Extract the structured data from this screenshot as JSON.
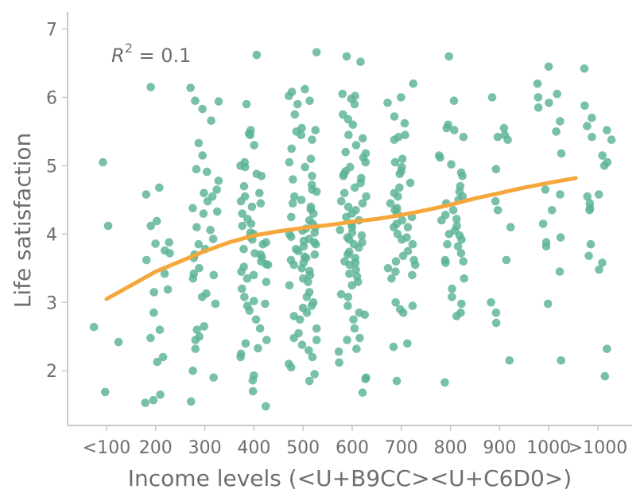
{
  "chart_data": {
    "type": "scatter",
    "xlabel": "Income levels (<U+B9CC><U+C6D0>)",
    "ylabel": "Life satisfaction",
    "annotation": {
      "prefix": "R",
      "sup": "2",
      "suffix": " = 0.1"
    },
    "categories": [
      "<100",
      "200",
      "300",
      "400",
      "500",
      "600",
      "700",
      "800",
      "900",
      "1000",
      ">1000"
    ],
    "ylim": [
      1.2,
      7.25
    ],
    "yticks": [
      2,
      3,
      4,
      5,
      6,
      7
    ],
    "grid": false,
    "colors": {
      "points": "#5ab394",
      "trend": "#f5a73b",
      "axis": "#c8c8c8",
      "text": "#6e6e6e"
    },
    "trend": [
      [
        0,
        3.05
      ],
      [
        0.5,
        3.25
      ],
      [
        1,
        3.45
      ],
      [
        1.5,
        3.6
      ],
      [
        2,
        3.75
      ],
      [
        2.5,
        3.88
      ],
      [
        3,
        3.98
      ],
      [
        3.5,
        4.04
      ],
      [
        4,
        4.09
      ],
      [
        4.5,
        4.13
      ],
      [
        5,
        4.18
      ],
      [
        5.5,
        4.22
      ],
      [
        6,
        4.28
      ],
      [
        6.5,
        4.35
      ],
      [
        7,
        4.43
      ],
      [
        7.5,
        4.52
      ],
      [
        8,
        4.6
      ],
      [
        8.5,
        4.68
      ],
      [
        9,
        4.75
      ],
      [
        9.55,
        4.82
      ]
    ],
    "points": [
      [
        0,
        2.42
      ],
      [
        0,
        2.64
      ],
      [
        0,
        4.12
      ],
      [
        0,
        5.05
      ],
      [
        0,
        1.69
      ],
      [
        1,
        4.68
      ],
      [
        1,
        4.58
      ],
      [
        1,
        4.12
      ],
      [
        1,
        4.19
      ],
      [
        1,
        3.88
      ],
      [
        1,
        3.76
      ],
      [
        1,
        3.62
      ],
      [
        1,
        3.72
      ],
      [
        1,
        3.42
      ],
      [
        1,
        3.15
      ],
      [
        1,
        3.19
      ],
      [
        1,
        2.85
      ],
      [
        1,
        2.6
      ],
      [
        1,
        2.48
      ],
      [
        1,
        2.2
      ],
      [
        1,
        2.13
      ],
      [
        1,
        1.65
      ],
      [
        1,
        1.57
      ],
      [
        1,
        1.53
      ],
      [
        1,
        6.15
      ],
      [
        1,
        3.86
      ],
      [
        2,
        6.14
      ],
      [
        2,
        5.95
      ],
      [
        2,
        5.83
      ],
      [
        2,
        5.94
      ],
      [
        2,
        5.66
      ],
      [
        2,
        5.33
      ],
      [
        2,
        5.15
      ],
      [
        2,
        4.95
      ],
      [
        2,
        4.91
      ],
      [
        2,
        4.78
      ],
      [
        2,
        4.65
      ],
      [
        2,
        4.6
      ],
      [
        2,
        4.55
      ],
      [
        2,
        4.48
      ],
      [
        2,
        4.33
      ],
      [
        2,
        4.3
      ],
      [
        2,
        4.1
      ],
      [
        2,
        4.06
      ],
      [
        2,
        3.93
      ],
      [
        2,
        3.85
      ],
      [
        2,
        3.78
      ],
      [
        2,
        3.7
      ],
      [
        2,
        3.65
      ],
      [
        2,
        3.5
      ],
      [
        2,
        3.42
      ],
      [
        2,
        3.4
      ],
      [
        2,
        3.13
      ],
      [
        2,
        3.08
      ],
      [
        2,
        2.98
      ],
      [
        2,
        2.65
      ],
      [
        2,
        2.6
      ],
      [
        2,
        2.5
      ],
      [
        2,
        2.45
      ],
      [
        2,
        2.32
      ],
      [
        2,
        2.0
      ],
      [
        2,
        1.9
      ],
      [
        2,
        1.55
      ],
      [
        2,
        3.35
      ],
      [
        2,
        4.38
      ],
      [
        3,
        6.62
      ],
      [
        3,
        5.9
      ],
      [
        3,
        5.52
      ],
      [
        3,
        5.47
      ],
      [
        3,
        5.45
      ],
      [
        3,
        5.3
      ],
      [
        3,
        5.05
      ],
      [
        3,
        5.0
      ],
      [
        3,
        4.98
      ],
      [
        3,
        4.88
      ],
      [
        3,
        4.7
      ],
      [
        3,
        4.6
      ],
      [
        3,
        4.55
      ],
      [
        3,
        4.48
      ],
      [
        3,
        4.45
      ],
      [
        3,
        4.4
      ],
      [
        3,
        4.3
      ],
      [
        3,
        4.22
      ],
      [
        3,
        4.12
      ],
      [
        3,
        4.02
      ],
      [
        3,
        4.0
      ],
      [
        3,
        3.96
      ],
      [
        3,
        3.92
      ],
      [
        3,
        3.88
      ],
      [
        3,
        3.85
      ],
      [
        3,
        3.78
      ],
      [
        3,
        3.72
      ],
      [
        3,
        3.7
      ],
      [
        3,
        3.66
      ],
      [
        3,
        3.6
      ],
      [
        3,
        3.56
      ],
      [
        3,
        3.52
      ],
      [
        3,
        3.45
      ],
      [
        3,
        3.4
      ],
      [
        3,
        3.35
      ],
      [
        3,
        3.3
      ],
      [
        3,
        3.2
      ],
      [
        3,
        3.08
      ],
      [
        3,
        3.02
      ],
      [
        3,
        2.98
      ],
      [
        3,
        2.88
      ],
      [
        3,
        2.75
      ],
      [
        3,
        2.62
      ],
      [
        3,
        2.45
      ],
      [
        3,
        2.4
      ],
      [
        3,
        2.33
      ],
      [
        3,
        2.25
      ],
      [
        3,
        2.2
      ],
      [
        3,
        1.93
      ],
      [
        3,
        1.86
      ],
      [
        3,
        1.7
      ],
      [
        3,
        1.48
      ],
      [
        3,
        4.15
      ],
      [
        3,
        3.55
      ],
      [
        3,
        2.95
      ],
      [
        3,
        4.85
      ],
      [
        4,
        6.66
      ],
      [
        4,
        6.08
      ],
      [
        4,
        6.02
      ],
      [
        4,
        5.95
      ],
      [
        4,
        5.9
      ],
      [
        4,
        5.75
      ],
      [
        4,
        5.52
      ],
      [
        4,
        5.5
      ],
      [
        4,
        5.45
      ],
      [
        4,
        5.38
      ],
      [
        4,
        5.1
      ],
      [
        4,
        5.05
      ],
      [
        4,
        4.98
      ],
      [
        4,
        4.85
      ],
      [
        4,
        4.8
      ],
      [
        4,
        4.72
      ],
      [
        4,
        4.65
      ],
      [
        4,
        4.55
      ],
      [
        4,
        4.5
      ],
      [
        4,
        4.4
      ],
      [
        4,
        4.36
      ],
      [
        4,
        4.3
      ],
      [
        4,
        4.25
      ],
      [
        4,
        4.2
      ],
      [
        4,
        4.15
      ],
      [
        4,
        4.1
      ],
      [
        4,
        4.08
      ],
      [
        4,
        4.05
      ],
      [
        4,
        4.02
      ],
      [
        4,
        4.0
      ],
      [
        4,
        3.96
      ],
      [
        4,
        3.93
      ],
      [
        4,
        3.9
      ],
      [
        4,
        3.88
      ],
      [
        4,
        3.85
      ],
      [
        4,
        3.82
      ],
      [
        4,
        3.78
      ],
      [
        4,
        3.75
      ],
      [
        4,
        3.7
      ],
      [
        4,
        3.67
      ],
      [
        4,
        3.62
      ],
      [
        4,
        3.58
      ],
      [
        4,
        3.55
      ],
      [
        4,
        3.5
      ],
      [
        4,
        3.46
      ],
      [
        4,
        3.4
      ],
      [
        4,
        3.35
      ],
      [
        4,
        3.3
      ],
      [
        4,
        3.25
      ],
      [
        4,
        3.15
      ],
      [
        4,
        3.0
      ],
      [
        4,
        2.95
      ],
      [
        4,
        2.92
      ],
      [
        4,
        2.85
      ],
      [
        4,
        2.8
      ],
      [
        4,
        2.75
      ],
      [
        4,
        2.62
      ],
      [
        4,
        2.55
      ],
      [
        4,
        2.45
      ],
      [
        4,
        2.38
      ],
      [
        4,
        2.3
      ],
      [
        4,
        2.2
      ],
      [
        4,
        2.1
      ],
      [
        4,
        2.05
      ],
      [
        4,
        1.95
      ],
      [
        4,
        1.85
      ],
      [
        4,
        5.55
      ],
      [
        4,
        4.45
      ],
      [
        4,
        3.65
      ],
      [
        4,
        2.48
      ],
      [
        4,
        6.12
      ],
      [
        4,
        5.25
      ],
      [
        4,
        4.62
      ],
      [
        4,
        3.08
      ],
      [
        5,
        6.6
      ],
      [
        5,
        6.52
      ],
      [
        5,
        6.05
      ],
      [
        5,
        5.98
      ],
      [
        5,
        5.9
      ],
      [
        5,
        5.75
      ],
      [
        5,
        5.6
      ],
      [
        5,
        5.45
      ],
      [
        5,
        5.4
      ],
      [
        5,
        5.3
      ],
      [
        5,
        5.2
      ],
      [
        5,
        5.12
      ],
      [
        5,
        5.05
      ],
      [
        5,
        4.98
      ],
      [
        5,
        4.92
      ],
      [
        5,
        4.88
      ],
      [
        5,
        4.82
      ],
      [
        5,
        4.75
      ],
      [
        5,
        4.68
      ],
      [
        5,
        4.6
      ],
      [
        5,
        4.55
      ],
      [
        5,
        4.48
      ],
      [
        5,
        4.45
      ],
      [
        5,
        4.4
      ],
      [
        5,
        4.35
      ],
      [
        5,
        4.3
      ],
      [
        5,
        4.25
      ],
      [
        5,
        4.2
      ],
      [
        5,
        4.15
      ],
      [
        5,
        4.1
      ],
      [
        5,
        4.06
      ],
      [
        5,
        4.02
      ],
      [
        5,
        3.98
      ],
      [
        5,
        3.92
      ],
      [
        5,
        3.88
      ],
      [
        5,
        3.85
      ],
      [
        5,
        3.8
      ],
      [
        5,
        3.74
      ],
      [
        5,
        3.7
      ],
      [
        5,
        3.65
      ],
      [
        5,
        3.6
      ],
      [
        5,
        3.55
      ],
      [
        5,
        3.48
      ],
      [
        5,
        3.42
      ],
      [
        5,
        3.38
      ],
      [
        5,
        3.3
      ],
      [
        5,
        3.25
      ],
      [
        5,
        3.12
      ],
      [
        5,
        3.08
      ],
      [
        5,
        2.95
      ],
      [
        5,
        2.85
      ],
      [
        5,
        2.82
      ],
      [
        5,
        2.75
      ],
      [
        5,
        2.62
      ],
      [
        5,
        2.48
      ],
      [
        5,
        2.45
      ],
      [
        5,
        2.32
      ],
      [
        5,
        2.12
      ],
      [
        5,
        1.9
      ],
      [
        5,
        1.88
      ],
      [
        5,
        1.68
      ],
      [
        5,
        5.68
      ],
      [
        5,
        4.85
      ],
      [
        5,
        3.95
      ],
      [
        5,
        3.58
      ],
      [
        5,
        2.28
      ],
      [
        5,
        6.02
      ],
      [
        5,
        5.18
      ],
      [
        6,
        6.2
      ],
      [
        6,
        6.0
      ],
      [
        6,
        5.92
      ],
      [
        6,
        5.72
      ],
      [
        6,
        5.62
      ],
      [
        6,
        5.45
      ],
      [
        6,
        5.42
      ],
      [
        6,
        5.38
      ],
      [
        6,
        5.1
      ],
      [
        6,
        5.05
      ],
      [
        6,
        4.98
      ],
      [
        6,
        4.92
      ],
      [
        6,
        4.88
      ],
      [
        6,
        4.75
      ],
      [
        6,
        4.68
      ],
      [
        6,
        4.6
      ],
      [
        6,
        4.55
      ],
      [
        6,
        4.45
      ],
      [
        6,
        4.38
      ],
      [
        6,
        4.35
      ],
      [
        6,
        4.3
      ],
      [
        6,
        4.25
      ],
      [
        6,
        4.2
      ],
      [
        6,
        4.15
      ],
      [
        6,
        4.1
      ],
      [
        6,
        4.0
      ],
      [
        6,
        3.95
      ],
      [
        6,
        3.92
      ],
      [
        6,
        3.85
      ],
      [
        6,
        3.75
      ],
      [
        6,
        3.68
      ],
      [
        6,
        3.6
      ],
      [
        6,
        3.55
      ],
      [
        6,
        3.5
      ],
      [
        6,
        3.45
      ],
      [
        6,
        3.4
      ],
      [
        6,
        3.35
      ],
      [
        6,
        3.0
      ],
      [
        6,
        2.95
      ],
      [
        6,
        2.9
      ],
      [
        6,
        2.85
      ],
      [
        6,
        2.4
      ],
      [
        6,
        2.35
      ],
      [
        6,
        1.85
      ],
      [
        6,
        4.1
      ],
      [
        6,
        3.62
      ],
      [
        7,
        6.6
      ],
      [
        7,
        5.95
      ],
      [
        7,
        5.6
      ],
      [
        7,
        5.55
      ],
      [
        7,
        5.52
      ],
      [
        7,
        5.42
      ],
      [
        7,
        5.15
      ],
      [
        7,
        5.12
      ],
      [
        7,
        4.9
      ],
      [
        7,
        4.85
      ],
      [
        7,
        4.62
      ],
      [
        7,
        4.55
      ],
      [
        7,
        4.5
      ],
      [
        7,
        4.45
      ],
      [
        7,
        4.35
      ],
      [
        7,
        4.28
      ],
      [
        7,
        4.22
      ],
      [
        7,
        4.12
      ],
      [
        7,
        4.05
      ],
      [
        7,
        3.98
      ],
      [
        7,
        3.92
      ],
      [
        7,
        3.85
      ],
      [
        7,
        3.82
      ],
      [
        7,
        3.72
      ],
      [
        7,
        3.62
      ],
      [
        7,
        3.6
      ],
      [
        7,
        3.58
      ],
      [
        7,
        3.35
      ],
      [
        7,
        3.2
      ],
      [
        7,
        2.98
      ],
      [
        7,
        2.85
      ],
      [
        7,
        2.8
      ],
      [
        7,
        1.83
      ],
      [
        7,
        4.7
      ],
      [
        7,
        4.0
      ],
      [
        7,
        5.02
      ],
      [
        7,
        3.08
      ],
      [
        7,
        4.2
      ],
      [
        8,
        6.0
      ],
      [
        8,
        5.55
      ],
      [
        8,
        5.45
      ],
      [
        8,
        5.42
      ],
      [
        8,
        5.38
      ],
      [
        8,
        4.95
      ],
      [
        8,
        4.48
      ],
      [
        8,
        4.35
      ],
      [
        8,
        4.1
      ],
      [
        8,
        3.62
      ],
      [
        8,
        3.0
      ],
      [
        8,
        2.85
      ],
      [
        8,
        2.7
      ],
      [
        8,
        2.15
      ],
      [
        9,
        6.45
      ],
      [
        9,
        6.2
      ],
      [
        9,
        6.05
      ],
      [
        9,
        6.0
      ],
      [
        9,
        5.92
      ],
      [
        9,
        5.85
      ],
      [
        9,
        5.65
      ],
      [
        9,
        5.5
      ],
      [
        9,
        5.18
      ],
      [
        9,
        4.65
      ],
      [
        9,
        4.58
      ],
      [
        9,
        4.35
      ],
      [
        9,
        4.15
      ],
      [
        9,
        3.95
      ],
      [
        9,
        3.88
      ],
      [
        9,
        3.82
      ],
      [
        9,
        3.45
      ],
      [
        9,
        2.98
      ],
      [
        9,
        2.15
      ],
      [
        10,
        6.42
      ],
      [
        10,
        5.88
      ],
      [
        10,
        5.7
      ],
      [
        10,
        5.58
      ],
      [
        10,
        5.52
      ],
      [
        10,
        5.42
      ],
      [
        10,
        5.38
      ],
      [
        10,
        5.15
      ],
      [
        10,
        5.05
      ],
      [
        10,
        4.58
      ],
      [
        10,
        4.45
      ],
      [
        10,
        4.38
      ],
      [
        10,
        4.35
      ],
      [
        10,
        3.85
      ],
      [
        10,
        3.68
      ],
      [
        10,
        3.58
      ],
      [
        10,
        3.48
      ],
      [
        10,
        2.32
      ],
      [
        10,
        1.92
      ],
      [
        10,
        4.55
      ],
      [
        10,
        5.0
      ]
    ]
  }
}
